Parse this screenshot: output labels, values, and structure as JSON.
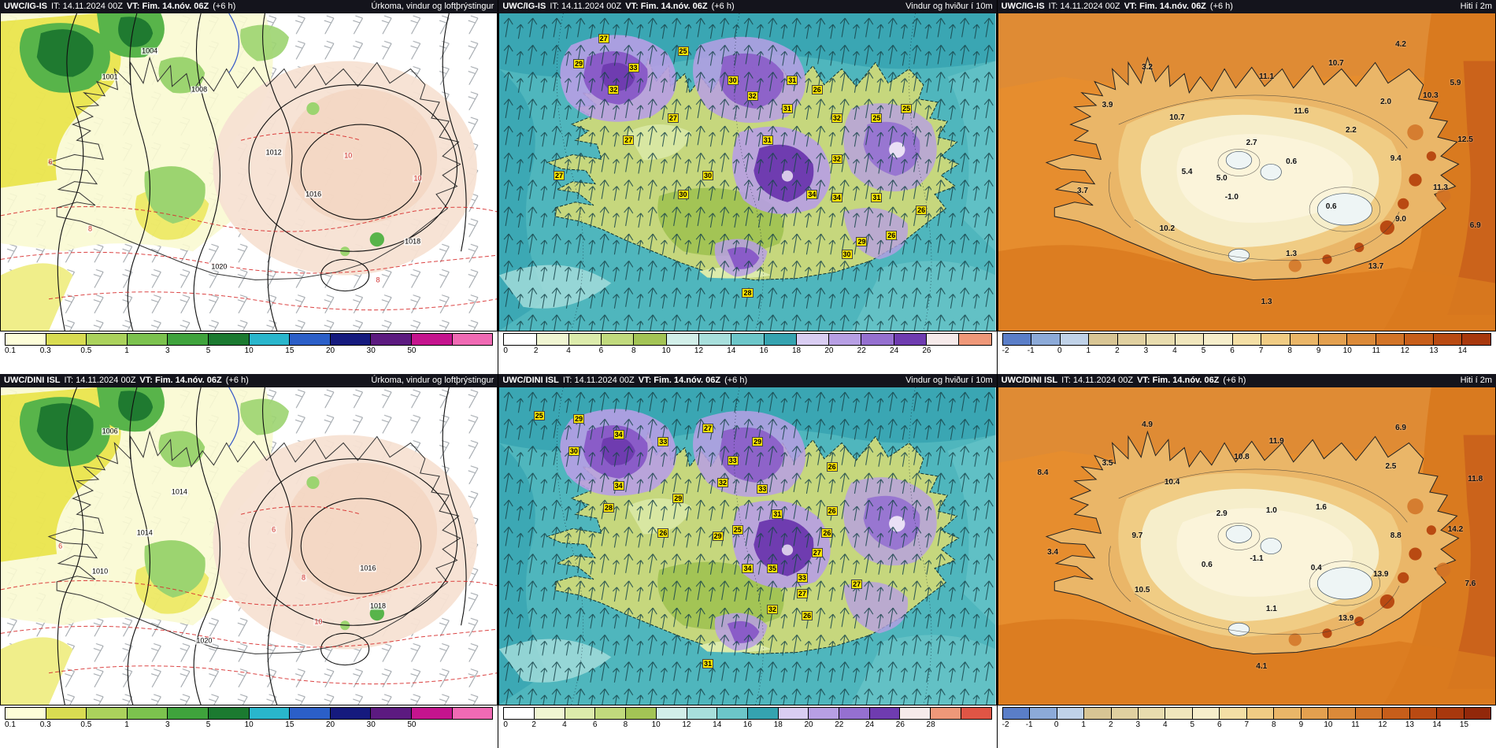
{
  "panels": [
    {
      "model": "UWC/IG-IS",
      "init": "IT: 14.11.2024 00Z",
      "valid": "VT: Fim. 14.nóv. 06Z",
      "lead": "(+6 h)",
      "title": "Úrkoma, vindur og loftþrýstingur",
      "spots": {
        "cls": "spot-iso",
        "name": "pressure-label",
        "items": [
          [
            22,
            20,
            "1001"
          ],
          [
            40,
            24,
            "1008"
          ],
          [
            55,
            44,
            "1012"
          ],
          [
            63,
            57,
            "1016"
          ],
          [
            83,
            72,
            "1018"
          ],
          [
            44,
            80,
            "1020"
          ],
          [
            30,
            12,
            "1004"
          ],
          [
            10,
            47,
            "6",
            "spot-iso spot-red"
          ],
          [
            18,
            68,
            "8",
            "spot-iso spot-red"
          ],
          [
            70,
            45,
            "10",
            "spot-iso spot-red"
          ],
          [
            84,
            52,
            "10",
            "spot-iso spot-red"
          ],
          [
            76,
            84,
            "8",
            "spot-iso spot-red"
          ]
        ]
      }
    },
    {
      "model": "UWC/IG-IS",
      "init": "IT: 14.11.2024 00Z",
      "valid": "VT: Fim. 14.nóv. 06Z",
      "lead": "(+6 h)",
      "title": "Vindur og hviður í 10m",
      "spots": {
        "cls": "spot-gust",
        "name": "gust-value-label",
        "items": [
          [
            21,
            8,
            "27"
          ],
          [
            16,
            16,
            "29"
          ],
          [
            27,
            17,
            "33"
          ],
          [
            37,
            12,
            "25"
          ],
          [
            47,
            21,
            "30"
          ],
          [
            59,
            21,
            "31"
          ],
          [
            64,
            24,
            "26"
          ],
          [
            23,
            24,
            "32"
          ],
          [
            51,
            26,
            "32"
          ],
          [
            58,
            30,
            "31"
          ],
          [
            68,
            33,
            "32"
          ],
          [
            76,
            33,
            "25"
          ],
          [
            82,
            30,
            "25"
          ],
          [
            35,
            33,
            "27"
          ],
          [
            26,
            40,
            "27"
          ],
          [
            54,
            40,
            "31"
          ],
          [
            68,
            46,
            "32"
          ],
          [
            12,
            51,
            "27"
          ],
          [
            42,
            51,
            "30"
          ],
          [
            37,
            57,
            "30"
          ],
          [
            63,
            57,
            "34"
          ],
          [
            68,
            58,
            "34"
          ],
          [
            76,
            58,
            "31"
          ],
          [
            85,
            62,
            "26"
          ],
          [
            73,
            72,
            "29"
          ],
          [
            79,
            70,
            "26"
          ],
          [
            70,
            76,
            "30"
          ],
          [
            50,
            88,
            "28"
          ]
        ]
      }
    },
    {
      "model": "UWC/IG-IS",
      "init": "IT: 14.11.2024 00Z",
      "valid": "VT: Fim. 14.nóv. 06Z",
      "lead": "(+6 h)",
      "title": "Hiti í 2m",
      "spots": {
        "cls": "spot-temp",
        "name": "temperature-label",
        "items": [
          [
            30,
            17,
            "3.2"
          ],
          [
            81,
            10,
            "4.2"
          ],
          [
            68,
            16,
            "10.7"
          ],
          [
            92,
            22,
            "5.9"
          ],
          [
            54,
            20,
            "11.1"
          ],
          [
            22,
            29,
            "3.9"
          ],
          [
            36,
            33,
            "10.7"
          ],
          [
            61,
            31,
            "11.6"
          ],
          [
            78,
            28,
            "2.0"
          ],
          [
            87,
            26,
            "10.3"
          ],
          [
            71,
            37,
            "2.2"
          ],
          [
            94,
            40,
            "12.5"
          ],
          [
            51,
            41,
            "2.7"
          ],
          [
            59,
            47,
            "0.6"
          ],
          [
            80,
            46,
            "9.4"
          ],
          [
            45,
            52,
            "5.0"
          ],
          [
            38,
            50,
            "5.4"
          ],
          [
            17,
            56,
            "3.7"
          ],
          [
            47,
            58,
            "-1.0"
          ],
          [
            67,
            61,
            "0.6"
          ],
          [
            89,
            55,
            "11.3"
          ],
          [
            34,
            68,
            "10.2"
          ],
          [
            81,
            65,
            "9.0"
          ],
          [
            96,
            67,
            "6.9"
          ],
          [
            59,
            76,
            "1.3"
          ],
          [
            76,
            80,
            "13.7"
          ],
          [
            54,
            91,
            "1.3"
          ]
        ]
      }
    },
    {
      "model": "UWC/DINI ISL",
      "init": "IT: 14.11.2024 00Z",
      "valid": "VT: Fim. 14.nóv. 06Z",
      "lead": "(+6 h)",
      "title": "Úrkoma, vindur og loftþrýstingur",
      "spots": {
        "cls": "spot-iso",
        "name": "pressure-label",
        "items": [
          [
            22,
            14,
            "1006"
          ],
          [
            36,
            33,
            "1014"
          ],
          [
            29,
            46,
            "1014"
          ],
          [
            74,
            57,
            "1016"
          ],
          [
            76,
            69,
            "1018"
          ],
          [
            41,
            80,
            "1020"
          ],
          [
            20,
            58,
            "1010"
          ],
          [
            55,
            45,
            "6",
            "spot-iso spot-red"
          ],
          [
            61,
            60,
            "8",
            "spot-iso spot-red"
          ],
          [
            64,
            74,
            "10",
            "spot-iso spot-red"
          ],
          [
            12,
            50,
            "6",
            "spot-iso spot-red"
          ]
        ]
      }
    },
    {
      "model": "UWC/DINI ISL",
      "init": "IT: 14.11.2024 00Z",
      "valid": "VT: Fim. 14.nóv. 06Z",
      "lead": "(+6 h)",
      "title": "Vindur og hviður í 10m",
      "spots": {
        "cls": "spot-gust",
        "name": "gust-value-label",
        "items": [
          [
            16,
            10,
            "29"
          ],
          [
            8,
            9,
            "25"
          ],
          [
            24,
            15,
            "34"
          ],
          [
            15,
            20,
            "30"
          ],
          [
            42,
            13,
            "27"
          ],
          [
            33,
            17,
            "33"
          ],
          [
            52,
            17,
            "29"
          ],
          [
            47,
            23,
            "33"
          ],
          [
            67,
            25,
            "26"
          ],
          [
            45,
            30,
            "32"
          ],
          [
            24,
            31,
            "34"
          ],
          [
            53,
            32,
            "33"
          ],
          [
            56,
            40,
            "31"
          ],
          [
            67,
            39,
            "26"
          ],
          [
            36,
            35,
            "29"
          ],
          [
            22,
            38,
            "28"
          ],
          [
            33,
            46,
            "26"
          ],
          [
            44,
            47,
            "29"
          ],
          [
            48,
            45,
            "25"
          ],
          [
            66,
            46,
            "26"
          ],
          [
            64,
            52,
            "27"
          ],
          [
            50,
            57,
            "34"
          ],
          [
            55,
            57,
            "35"
          ],
          [
            61,
            60,
            "33"
          ],
          [
            61,
            65,
            "27"
          ],
          [
            55,
            70,
            "32"
          ],
          [
            62,
            72,
            "26"
          ],
          [
            72,
            62,
            "27"
          ],
          [
            42,
            87,
            "31"
          ]
        ]
      }
    },
    {
      "model": "UWC/DINI ISL",
      "init": "IT: 14.11.2024 00Z",
      "valid": "VT: Fim. 14.nóv. 06Z",
      "lead": "(+6 h)",
      "title": "Hiti í 2m",
      "spots": {
        "cls": "spot-temp",
        "name": "temperature-label",
        "items": [
          [
            30,
            12,
            "4.9"
          ],
          [
            81,
            13,
            "6.9"
          ],
          [
            22,
            24,
            "3.5"
          ],
          [
            56,
            17,
            "11.9"
          ],
          [
            49,
            22,
            "10.8"
          ],
          [
            79,
            25,
            "2.5"
          ],
          [
            9,
            27,
            "8.4"
          ],
          [
            35,
            30,
            "10.4"
          ],
          [
            96,
            29,
            "11.8"
          ],
          [
            45,
            40,
            "2.9"
          ],
          [
            55,
            39,
            "1.0"
          ],
          [
            65,
            38,
            "1.6"
          ],
          [
            28,
            47,
            "9.7"
          ],
          [
            80,
            47,
            "8.8"
          ],
          [
            92,
            45,
            "14.2"
          ],
          [
            11,
            52,
            "3.4"
          ],
          [
            42,
            56,
            "0.6"
          ],
          [
            52,
            54,
            "-1.1"
          ],
          [
            64,
            57,
            "0.4"
          ],
          [
            77,
            59,
            "13.9"
          ],
          [
            29,
            64,
            "10.5"
          ],
          [
            95,
            62,
            "7.6"
          ],
          [
            55,
            70,
            "1.1"
          ],
          [
            70,
            73,
            "13.9"
          ],
          [
            53,
            88,
            "4.1"
          ]
        ]
      }
    }
  ],
  "scales": {
    "precip": {
      "ticks": [
        "0.1",
        "0.3",
        "0.5",
        "1",
        "3",
        "5",
        "10",
        "15",
        "20",
        "30",
        "50"
      ],
      "colors": [
        "#fdfdd8",
        "#d9dc52",
        "#abd25c",
        "#7cc24e",
        "#3fa33c",
        "#1b7a30",
        "#29b6cc",
        "#2b5fc8",
        "#151a7e",
        "#5c1a80",
        "#c5148e",
        "#f06ab4"
      ]
    },
    "windTop": {
      "ticks": [
        "0",
        "2",
        "4",
        "6",
        "8",
        "10",
        "12",
        "14",
        "16",
        "18",
        "20",
        "22",
        "24",
        "26"
      ],
      "colors": [
        "#ffffff",
        "#f0f5d2",
        "#dcebab",
        "#c1da7d",
        "#a3c455",
        "#d2efe9",
        "#a8dfdc",
        "#6cc6c9",
        "#35a3b0",
        "#d9cdf2",
        "#b79fe4",
        "#9570d0",
        "#6f3cb0",
        "#f6eaea",
        "#ef9879"
      ]
    },
    "windBottom": {
      "ticks": [
        "0",
        "2",
        "4",
        "6",
        "8",
        "10",
        "12",
        "14",
        "16",
        "18",
        "20",
        "22",
        "24",
        "26",
        "28"
      ],
      "colors": [
        "#ffffff",
        "#f0f5d2",
        "#dcebab",
        "#c1da7d",
        "#a3c455",
        "#d2efe9",
        "#a8dfdc",
        "#6cc6c9",
        "#35a3b0",
        "#d9cdf2",
        "#b79fe4",
        "#9570d0",
        "#6f3cb0",
        "#f6eaea",
        "#ef9879",
        "#e05545"
      ]
    },
    "tempTop": {
      "ticks": [
        "-2",
        "-1",
        "0",
        "1",
        "2",
        "3",
        "4",
        "5",
        "6",
        "7",
        "8",
        "9",
        "10",
        "11",
        "12",
        "13",
        "14"
      ],
      "colors": [
        "#5a7ec8",
        "#8caad8",
        "#c0d2e8",
        "#d8c594",
        "#e0d0a0",
        "#e8dcae",
        "#f0e6bc",
        "#f6eecb",
        "#f4dfa5",
        "#f0cc84",
        "#eab668",
        "#e3a04f",
        "#db8a39",
        "#d27427",
        "#c75e1a",
        "#b94a12",
        "#a8380d"
      ]
    },
    "tempBottom": {
      "ticks": [
        "-2",
        "-1",
        "0",
        "1",
        "2",
        "3",
        "4",
        "5",
        "6",
        "7",
        "8",
        "9",
        "10",
        "11",
        "12",
        "13",
        "14",
        "15"
      ],
      "colors": [
        "#5a7ec8",
        "#8caad8",
        "#c0d2e8",
        "#d8c594",
        "#e0d0a0",
        "#e8dcae",
        "#f0e6bc",
        "#f6eecb",
        "#f4dfa5",
        "#f0cc84",
        "#eab668",
        "#e3a04f",
        "#db8a39",
        "#d27427",
        "#c75e1a",
        "#b94a12",
        "#a8380d",
        "#92280a"
      ]
    }
  }
}
